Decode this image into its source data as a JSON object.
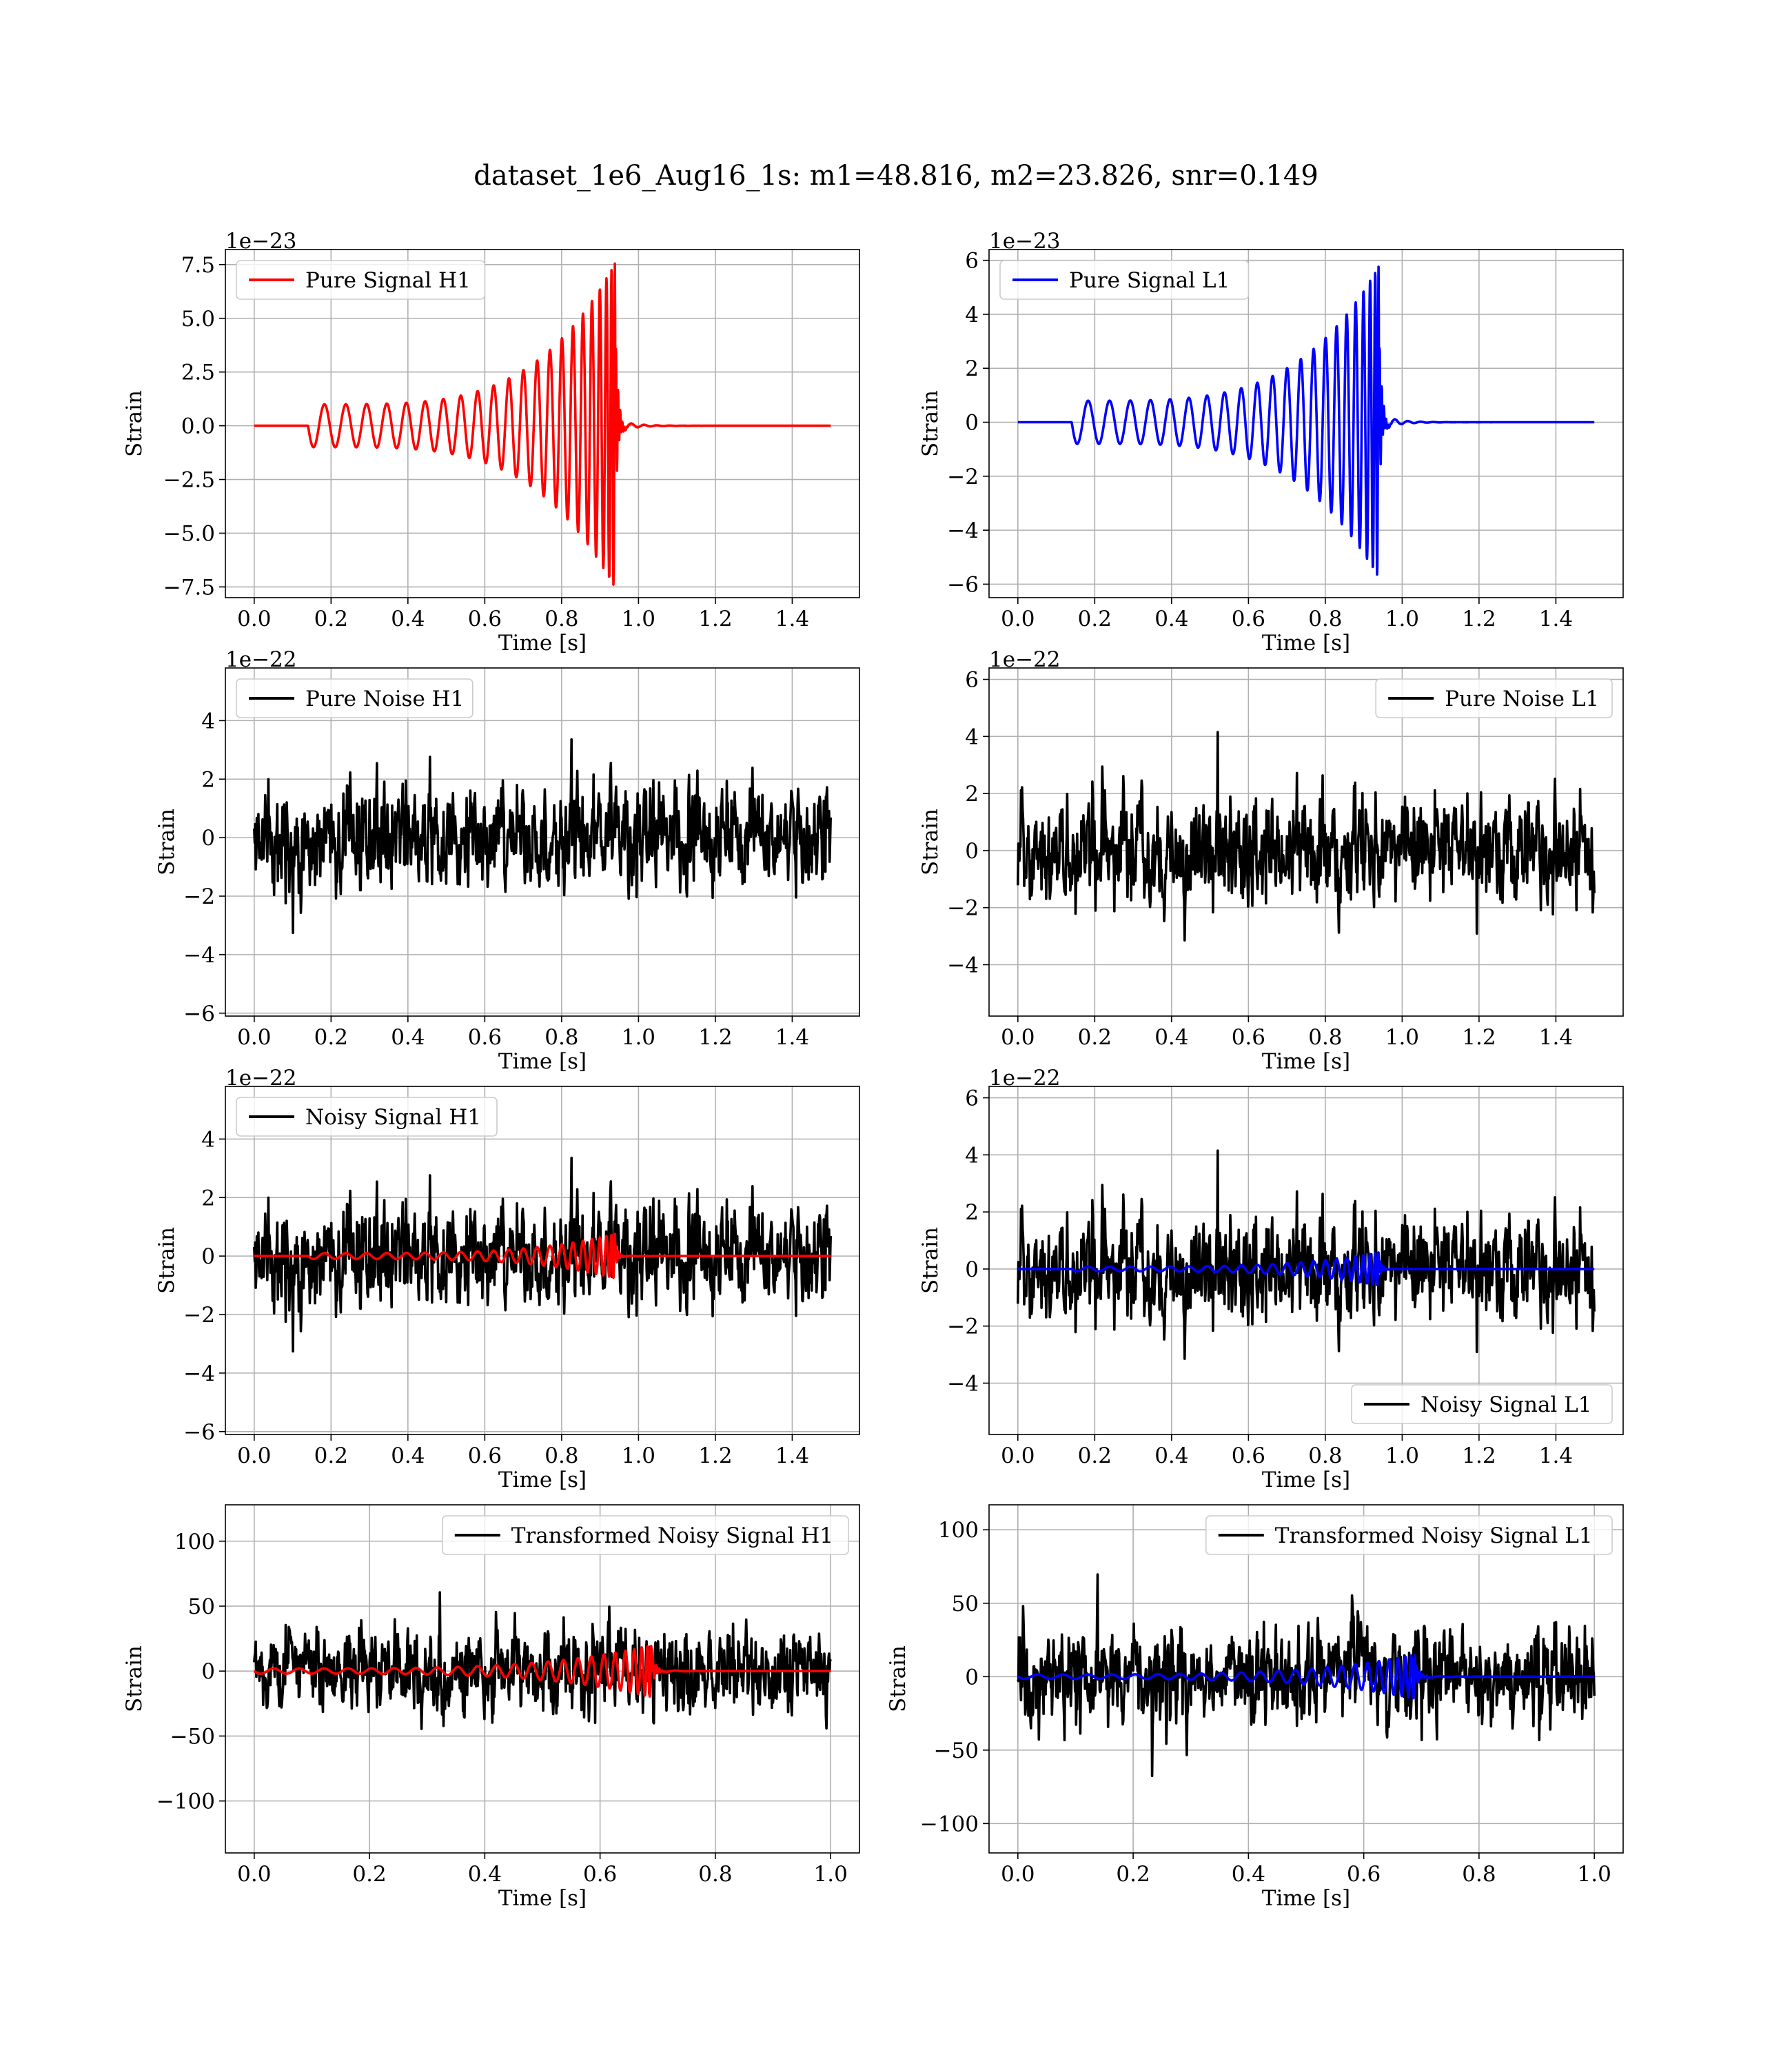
{
  "figure": {
    "suptitle": "dataset_1e6_Aug16_1s: m1=48.816, m2=23.826, snr=0.149"
  },
  "colors": {
    "noise": "#000000",
    "signal_h1": "#ff0000",
    "signal_l1": "#0000ff",
    "grid": "#b0b0b0",
    "frame": "#000000"
  },
  "chart_data": [
    {
      "id": "pure-signal-h1",
      "type": "line",
      "xlabel": "Time [s]",
      "ylabel": "Strain",
      "offset_label": "1e−23",
      "xlim": [
        -0.075,
        1.575
      ],
      "ylim": [
        -8.0,
        8.2
      ],
      "xticks": [
        0.0,
        0.2,
        0.4,
        0.6,
        0.8,
        1.0,
        1.2,
        1.4
      ],
      "xtick_labels": [
        "0.0",
        "0.2",
        "0.4",
        "0.6",
        "0.8",
        "1.0",
        "1.2",
        "1.4"
      ],
      "yticks": [
        -7.5,
        -5.0,
        -2.5,
        0.0,
        2.5,
        5.0,
        7.5
      ],
      "ytick_labels": [
        "−7.5",
        "−5.0",
        "−2.5",
        "0.0",
        "2.5",
        "5.0",
        "7.5"
      ],
      "grid": true,
      "legend_position": "upper left",
      "series": [
        {
          "name": "Pure Signal H1",
          "kind": "chirp",
          "color": "#ff0000",
          "legend": true,
          "t_start": 0.0,
          "t_end": 1.5,
          "t_onset": 0.14,
          "t_merger": 0.94,
          "amp_start": 1.0,
          "amp_peak": 7.6,
          "cycles": 22,
          "ringdown_amp": 0.3
        }
      ]
    },
    {
      "id": "pure-signal-l1",
      "type": "line",
      "xlabel": "Time [s]",
      "ylabel": "Strain",
      "offset_label": "1e−23",
      "xlim": [
        -0.075,
        1.575
      ],
      "ylim": [
        -6.5,
        6.4
      ],
      "xticks": [
        0.0,
        0.2,
        0.4,
        0.6,
        0.8,
        1.0,
        1.2,
        1.4
      ],
      "xtick_labels": [
        "0.0",
        "0.2",
        "0.4",
        "0.6",
        "0.8",
        "1.0",
        "1.2",
        "1.4"
      ],
      "yticks": [
        -6,
        -4,
        -2,
        0,
        2,
        4,
        6
      ],
      "ytick_labels": [
        "−6",
        "−4",
        "−2",
        "0",
        "2",
        "4",
        "6"
      ],
      "grid": true,
      "legend_position": "upper left",
      "series": [
        {
          "name": "Pure Signal L1",
          "kind": "chirp",
          "color": "#0000ff",
          "legend": true,
          "t_start": 0.0,
          "t_end": 1.5,
          "t_onset": 0.14,
          "t_merger": 0.94,
          "amp_start": 0.8,
          "amp_peak": 5.8,
          "cycles": 22,
          "ringdown_amp": 0.3
        }
      ]
    },
    {
      "id": "pure-noise-h1",
      "type": "line",
      "xlabel": "Time [s]",
      "ylabel": "Strain",
      "offset_label": "1e−22",
      "xlim": [
        -0.075,
        1.575
      ],
      "ylim": [
        -6.1,
        5.8
      ],
      "xticks": [
        0.0,
        0.2,
        0.4,
        0.6,
        0.8,
        1.0,
        1.2,
        1.4
      ],
      "xtick_labels": [
        "0.0",
        "0.2",
        "0.4",
        "0.6",
        "0.8",
        "1.0",
        "1.2",
        "1.4"
      ],
      "yticks": [
        -6,
        -4,
        -2,
        0,
        2,
        4
      ],
      "ytick_labels": [
        "−6",
        "−4",
        "−2",
        "0",
        "2",
        "4"
      ],
      "grid": true,
      "legend_position": "upper left",
      "series": [
        {
          "name": "Pure Noise H1",
          "kind": "noise",
          "color": "#000000",
          "legend": true,
          "t_start": 0.0,
          "t_end": 1.5,
          "sigma": 1.45,
          "clip": [
            -5.6,
            5.4
          ],
          "seed": 11
        }
      ]
    },
    {
      "id": "pure-noise-l1",
      "type": "line",
      "xlabel": "Time [s]",
      "ylabel": "Strain",
      "offset_label": "1e−22",
      "xlim": [
        -0.075,
        1.575
      ],
      "ylim": [
        -5.8,
        6.4
      ],
      "xticks": [
        0.0,
        0.2,
        0.4,
        0.6,
        0.8,
        1.0,
        1.2,
        1.4
      ],
      "xtick_labels": [
        "0.0",
        "0.2",
        "0.4",
        "0.6",
        "0.8",
        "1.0",
        "1.2",
        "1.4"
      ],
      "yticks": [
        -4,
        -2,
        0,
        2,
        4,
        6
      ],
      "ytick_labels": [
        "−4",
        "−2",
        "0",
        "2",
        "4",
        "6"
      ],
      "grid": true,
      "legend_position": "upper right",
      "series": [
        {
          "name": "Pure Noise L1",
          "kind": "noise",
          "color": "#000000",
          "legend": true,
          "t_start": 0.0,
          "t_end": 1.5,
          "sigma": 1.5,
          "clip": [
            -5.2,
            5.8
          ],
          "seed": 23
        }
      ]
    },
    {
      "id": "noisy-signal-h1",
      "type": "line",
      "xlabel": "Time [s]",
      "ylabel": "Strain",
      "offset_label": "1e−22",
      "xlim": [
        -0.075,
        1.575
      ],
      "ylim": [
        -6.1,
        5.8
      ],
      "xticks": [
        0.0,
        0.2,
        0.4,
        0.6,
        0.8,
        1.0,
        1.2,
        1.4
      ],
      "xtick_labels": [
        "0.0",
        "0.2",
        "0.4",
        "0.6",
        "0.8",
        "1.0",
        "1.2",
        "1.4"
      ],
      "yticks": [
        -6,
        -4,
        -2,
        0,
        2,
        4
      ],
      "ytick_labels": [
        "−6",
        "−4",
        "−2",
        "0",
        "2",
        "4"
      ],
      "grid": true,
      "legend_position": "upper left",
      "series": [
        {
          "name": "Noisy Signal H1",
          "kind": "noise",
          "color": "#000000",
          "legend": true,
          "t_start": 0.0,
          "t_end": 1.5,
          "sigma": 1.45,
          "clip": [
            -5.6,
            5.4
          ],
          "seed": 11
        },
        {
          "kind": "chirp",
          "color": "#ff0000",
          "legend": false,
          "t_start": 0.0,
          "t_end": 1.5,
          "t_onset": 0.14,
          "t_merger": 0.94,
          "amp_start": 0.1,
          "amp_peak": 0.76,
          "cycles": 22,
          "ringdown_amp": 0.03
        }
      ]
    },
    {
      "id": "noisy-signal-l1",
      "type": "line",
      "xlabel": "Time [s]",
      "ylabel": "Strain",
      "offset_label": "1e−22",
      "xlim": [
        -0.075,
        1.575
      ],
      "ylim": [
        -5.8,
        6.4
      ],
      "xticks": [
        0.0,
        0.2,
        0.4,
        0.6,
        0.8,
        1.0,
        1.2,
        1.4
      ],
      "xtick_labels": [
        "0.0",
        "0.2",
        "0.4",
        "0.6",
        "0.8",
        "1.0",
        "1.2",
        "1.4"
      ],
      "yticks": [
        -4,
        -2,
        0,
        2,
        4,
        6
      ],
      "ytick_labels": [
        "−4",
        "−2",
        "0",
        "2",
        "4",
        "6"
      ],
      "grid": true,
      "legend_position": "lower right",
      "series": [
        {
          "name": "Noisy Signal L1",
          "kind": "noise",
          "color": "#000000",
          "legend": true,
          "t_start": 0.0,
          "t_end": 1.5,
          "sigma": 1.5,
          "clip": [
            -5.2,
            5.8
          ],
          "seed": 23
        },
        {
          "kind": "chirp",
          "color": "#0000ff",
          "legend": false,
          "t_start": 0.0,
          "t_end": 1.5,
          "t_onset": 0.14,
          "t_merger": 0.94,
          "amp_start": 0.08,
          "amp_peak": 0.58,
          "cycles": 22,
          "ringdown_amp": 0.03
        }
      ]
    },
    {
      "id": "transformed-noisy-signal-h1",
      "type": "line",
      "xlabel": "Time [s]",
      "ylabel": "Strain",
      "offset_label": "",
      "xlim": [
        -0.05,
        1.05
      ],
      "ylim": [
        -140,
        128
      ],
      "xticks": [
        0.0,
        0.2,
        0.4,
        0.6,
        0.8,
        1.0
      ],
      "xtick_labels": [
        "0.0",
        "0.2",
        "0.4",
        "0.6",
        "0.8",
        "1.0"
      ],
      "yticks": [
        -100,
        -50,
        0,
        50,
        100
      ],
      "ytick_labels": [
        "−100",
        "−50",
        "0",
        "50",
        "100"
      ],
      "grid": true,
      "legend_position": "upper right",
      "series": [
        {
          "name": "Transformed Noisy Signal H1",
          "kind": "noise",
          "color": "#000000",
          "legend": true,
          "t_start": 0.0,
          "t_end": 1.0,
          "sigma": 27,
          "clip": [
            -128,
            118
          ],
          "seed": 37
        },
        {
          "kind": "chirp",
          "color": "#ff0000",
          "legend": false,
          "t_start": 0.0,
          "t_end": 1.0,
          "t_onset": 0.0,
          "t_merger": 0.69,
          "amp_start": 2,
          "amp_peak": 20,
          "cycles": 24,
          "ringdown_amp": 1
        }
      ]
    },
    {
      "id": "transformed-noisy-signal-l1",
      "type": "line",
      "xlabel": "Time [s]",
      "ylabel": "Strain",
      "offset_label": "",
      "xlim": [
        -0.05,
        1.05
      ],
      "ylim": [
        -120,
        117
      ],
      "xticks": [
        0.0,
        0.2,
        0.4,
        0.6,
        0.8,
        1.0
      ],
      "xtick_labels": [
        "0.0",
        "0.2",
        "0.4",
        "0.6",
        "0.8",
        "1.0"
      ],
      "yticks": [
        -100,
        -50,
        0,
        50,
        100
      ],
      "ytick_labels": [
        "−100",
        "−50",
        "0",
        "50",
        "100"
      ],
      "grid": true,
      "legend_position": "upper right",
      "series": [
        {
          "name": "Transformed Noisy Signal L1",
          "kind": "noise",
          "color": "#000000",
          "legend": true,
          "t_start": 0.0,
          "t_end": 1.0,
          "sigma": 27,
          "clip": [
            -112,
            101
          ],
          "seed": 53
        },
        {
          "kind": "chirp",
          "color": "#0000ff",
          "legend": false,
          "t_start": 0.0,
          "t_end": 1.0,
          "t_onset": 0.0,
          "t_merger": 0.69,
          "amp_start": 1.5,
          "amp_peak": 15,
          "cycles": 24,
          "ringdown_amp": 1
        }
      ]
    }
  ]
}
